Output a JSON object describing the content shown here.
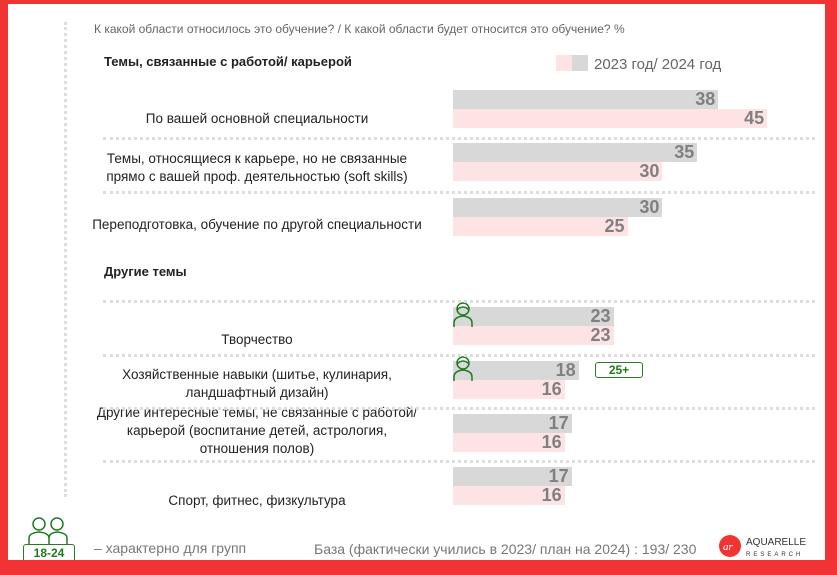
{
  "title": "К какой области относилось это обучение? / К какой области будет относится это обучение? %",
  "legend": {
    "label": "2023 год/ 2024 год"
  },
  "colors": {
    "y2023": "#d8d8d8",
    "y2024": "#fde3e3",
    "accent": "#ef3433",
    "green": "#1f7a1f"
  },
  "footer": {
    "group_badge": "18-24",
    "group_text": "– характерно для групп",
    "base": "База (фактически учились в 2023/ план на 2024) : 193/ 230",
    "logo": "AQUARELLE RESEARCH"
  },
  "chart_data": {
    "type": "bar",
    "title": "К какой области относилось это обучение? / К какой области будет относится это обучение? %",
    "series_names": [
      "2023",
      "2024"
    ],
    "xlim": [
      0,
      45
    ],
    "sections": [
      {
        "name": "Темы, связанные с работой/ карьерой",
        "rows": [
          {
            "label": "По вашей основной специальности",
            "v2023": 38,
            "v2024": 45
          },
          {
            "label": "Темы, относящиеся к карьере, но не связанные прямо с вашей проф. деятельностью (soft skills)",
            "v2023": 35,
            "v2024": 30
          },
          {
            "label": "Переподготовка, обучение по другой специальности",
            "v2023": 30,
            "v2024": 25
          }
        ]
      },
      {
        "name": "Другие темы",
        "rows": [
          {
            "label": "Творчество",
            "v2023": 23,
            "v2024": 23,
            "icon": "woman-icon"
          },
          {
            "label": "Хозяйственные навыки (шитье, кулинария, ландшафтный дизайн)",
            "v2023": 18,
            "v2024": 16,
            "icon": "woman-icon",
            "badge": "25+"
          },
          {
            "label": "Другие интересные темы, не связанные с работой/ карьерой (воспитание детей, астрология, отношения полов)",
            "v2023": 17,
            "v2024": 16
          },
          {
            "label": "Спорт, фитнес, физкультура",
            "v2023": 17,
            "v2024": 16
          }
        ]
      }
    ]
  }
}
